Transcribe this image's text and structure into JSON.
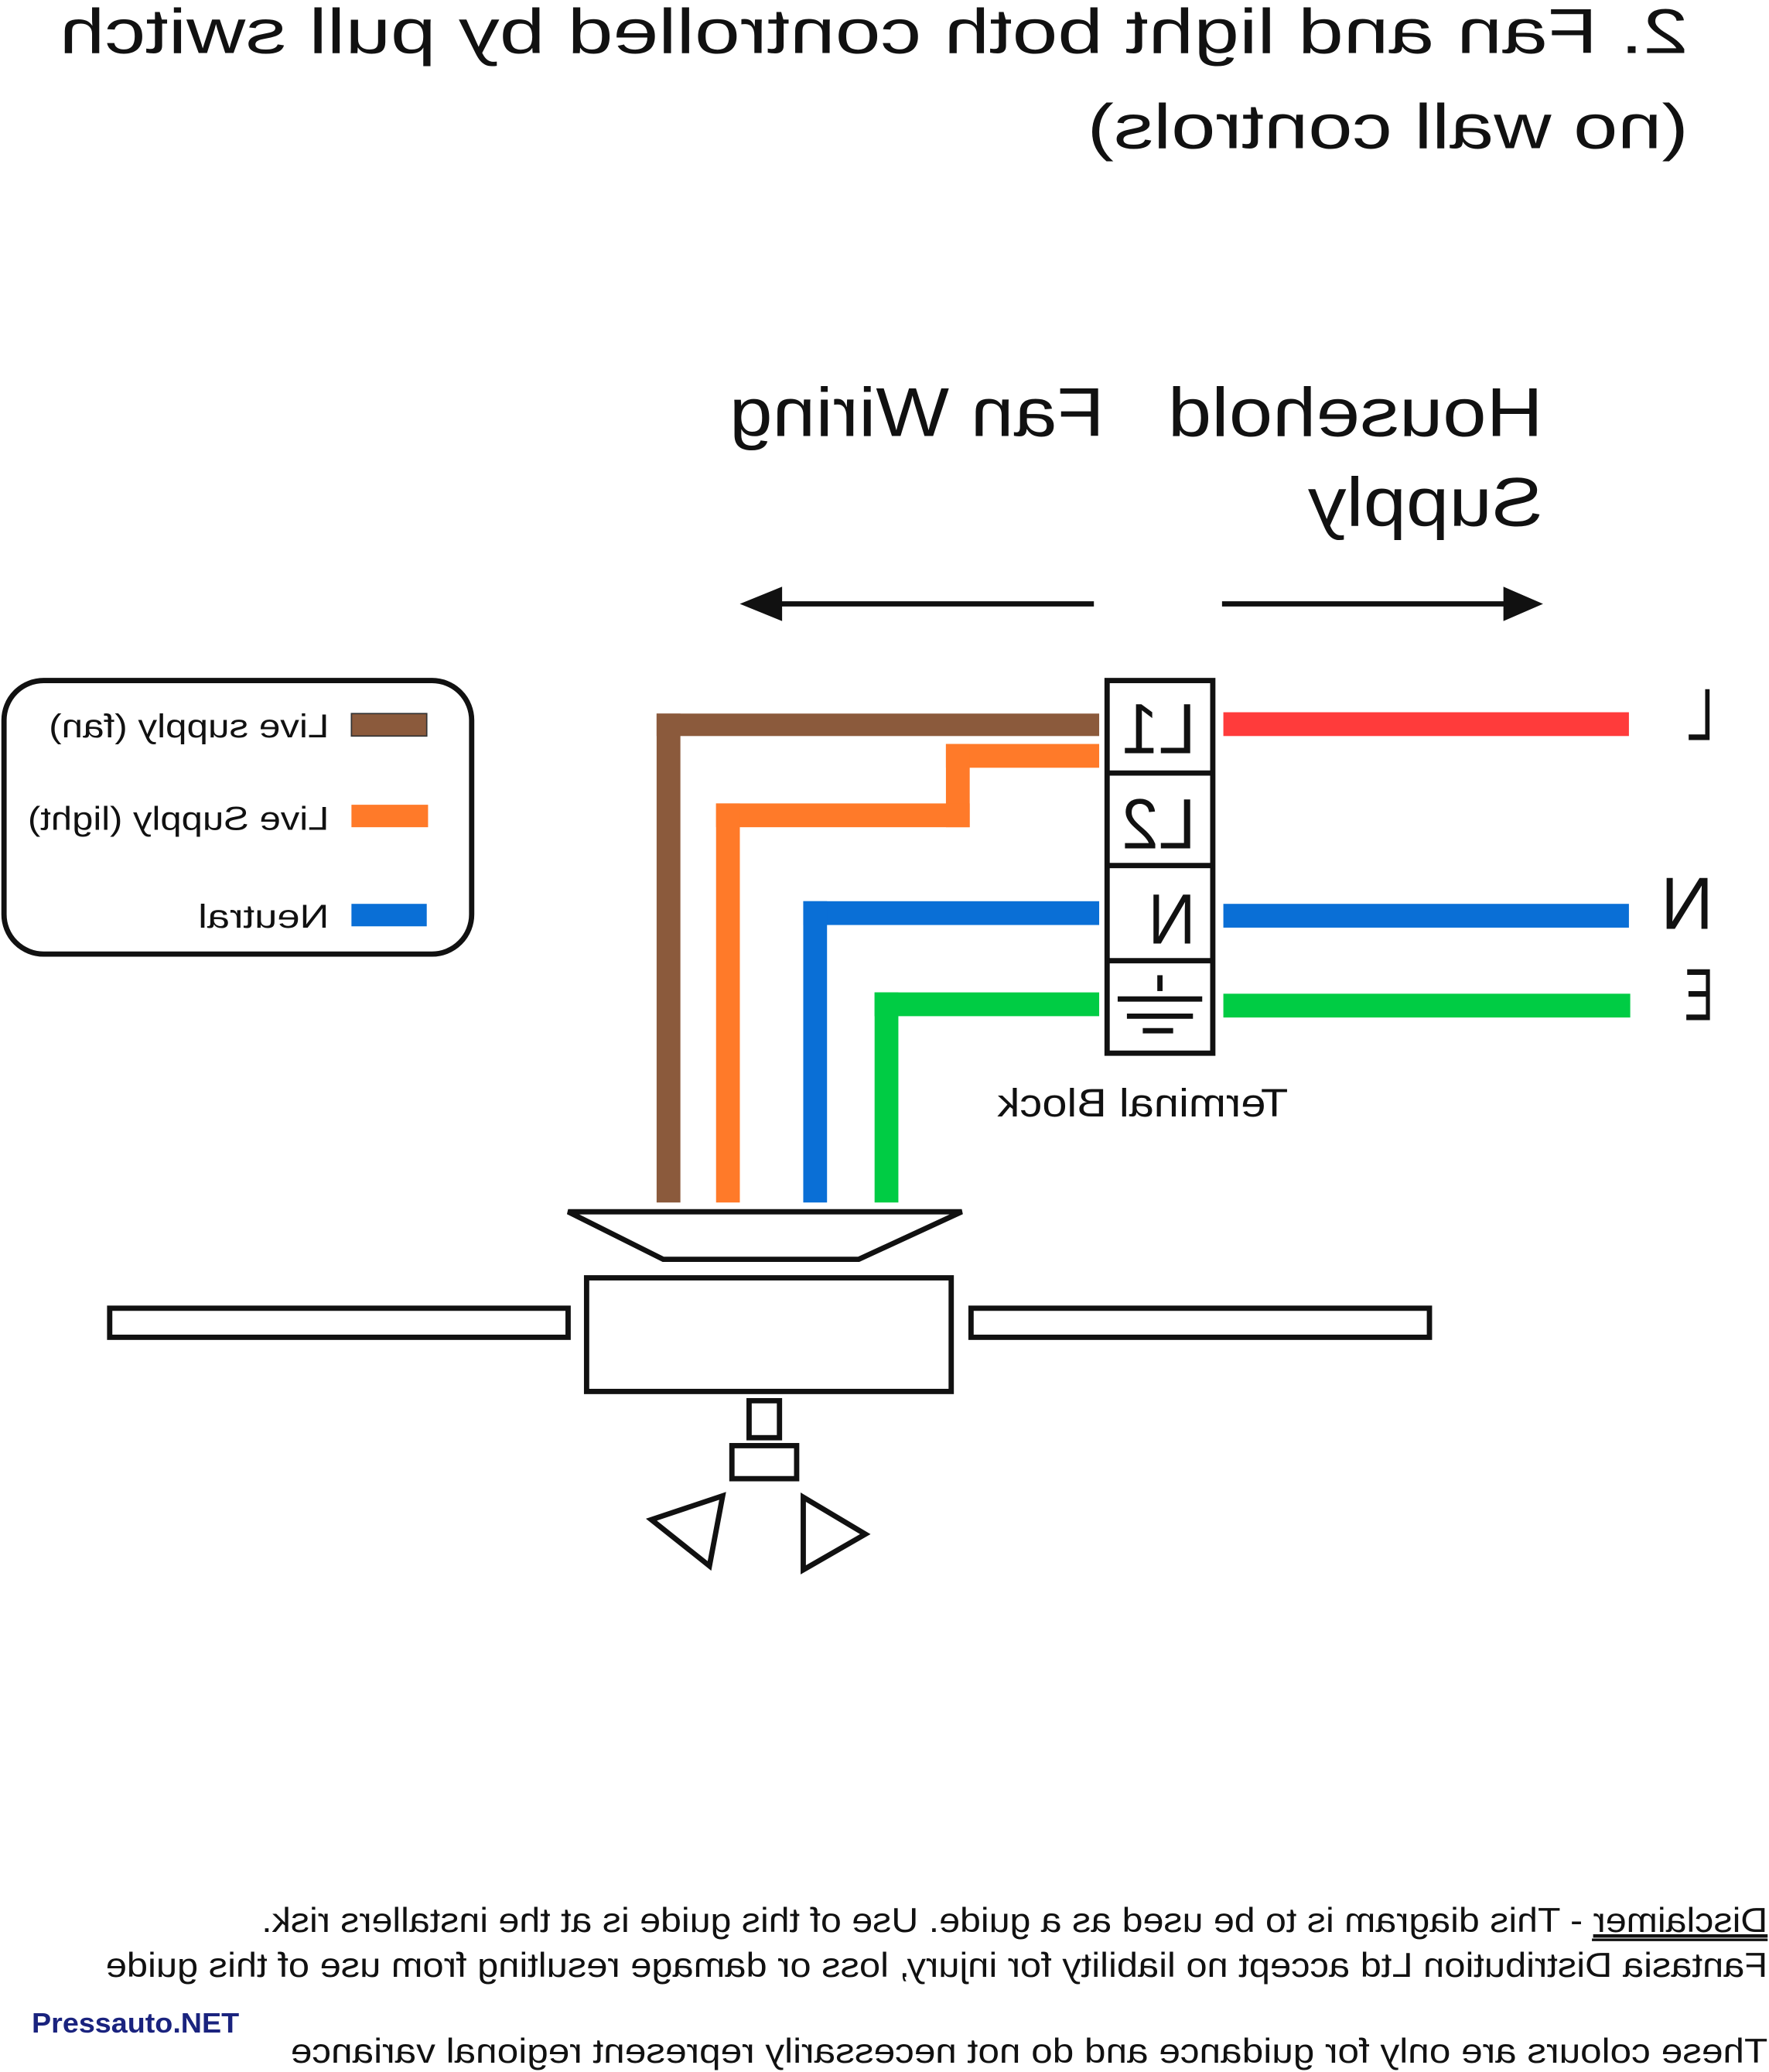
{
  "title": {
    "line1": "2. Fan and light both controlled by pull switch",
    "line2": "(no wall controls)"
  },
  "headings": {
    "household_line1": "Household",
    "household_line2": "Supply",
    "fan_wiring": "Fan Wiring"
  },
  "legend": {
    "items": [
      {
        "label": "Live supply (fan)",
        "color": "#8B5A3C"
      },
      {
        "label": "Live Supply (light)",
        "color": "#FF7A29"
      },
      {
        "label": "Neutral",
        "color": "#0A6FD6"
      }
    ]
  },
  "terminal_block": {
    "label": "Terminal Block",
    "terminals": [
      "L1",
      "L2",
      "N"
    ],
    "earth_icon": "ground-symbol-icon"
  },
  "supply_labels": {
    "live": "L",
    "neutral": "N",
    "earth": "E"
  },
  "colors": {
    "brown": "#8B5A3C",
    "orange": "#FF7A29",
    "blue": "#0A6FD6",
    "green": "#00CC44",
    "red": "#FF3B3B"
  },
  "disclaimer": {
    "heading": "Disclaimer",
    "line1_rest": " - This diagram is to be used as a guide.  Use of this guide is at the installers risk.",
    "line2": "Fantasia Distribution Ltd accept no liability for injury, loss or damage resulting from use of this guide",
    "line3": "These colours are only for guidance and do not necessarily represent regional variance"
  },
  "watermark": "Pressauto.NET",
  "mirrored": true
}
